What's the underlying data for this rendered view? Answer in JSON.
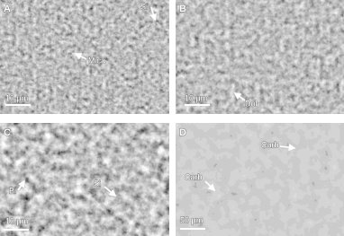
{
  "panels": [
    {
      "label": "A",
      "annotations": [
        {
          "text": "Si"
        },
        {
          "text": "Mica"
        }
      ],
      "scale_bar": "10 μm"
    },
    {
      "label": "B",
      "annotations": [
        {
          "text": "Dol"
        }
      ],
      "scale_bar": "10 μm"
    },
    {
      "label": "C",
      "annotations": [
        {
          "text": "Bi"
        },
        {
          "text": "Si"
        }
      ],
      "scale_bar": "10 μm"
    },
    {
      "label": "D",
      "annotations": [
        {
          "text": "Carb"
        },
        {
          "text": "Carb"
        }
      ],
      "scale_bar": "50 μm"
    }
  ]
}
